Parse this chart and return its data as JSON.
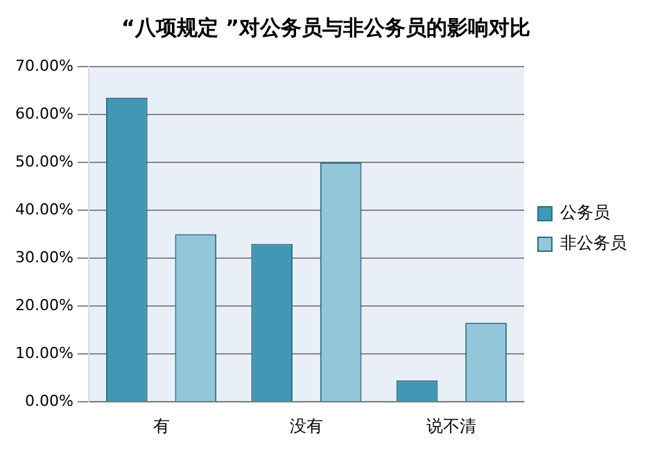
{
  "chart_data": {
    "type": "bar",
    "title": "“八项规定 ”对公务员与非公务员的影响对比",
    "categories": [
      "有",
      "没有",
      "说不清"
    ],
    "series": [
      {
        "name": "公务员",
        "color": "#4198b5",
        "values": [
          63.5,
          33,
          4.5
        ]
      },
      {
        "name": "非公务员",
        "color": "#93c6d9",
        "values": [
          35,
          50,
          16.5
        ]
      }
    ],
    "ylim": [
      0,
      70
    ],
    "yticks": [
      {
        "value": 0,
        "label": "0.00%"
      },
      {
        "value": 10,
        "label": "10.00%"
      },
      {
        "value": 20,
        "label": "20.00%"
      },
      {
        "value": 30,
        "label": "30.00%"
      },
      {
        "value": 40,
        "label": "40.00%"
      },
      {
        "value": 50,
        "label": "50.00%"
      },
      {
        "value": 60,
        "label": "60.00%"
      },
      {
        "value": 70,
        "label": "70.00%"
      }
    ],
    "grid": "y",
    "legend": "right"
  }
}
